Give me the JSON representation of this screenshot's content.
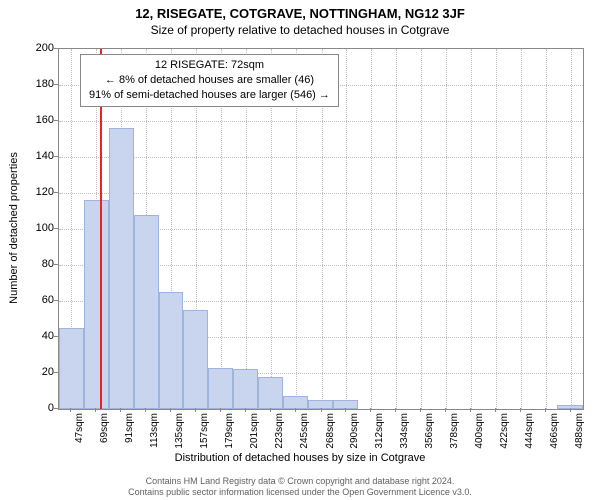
{
  "title_main": "12, RISEGATE, COTGRAVE, NOTTINGHAM, NG12 3JF",
  "title_sub": "Size of property relative to detached houses in Cotgrave",
  "y_axis_title": "Number of detached properties",
  "x_axis_title": "Distribution of detached houses by size in Cotgrave",
  "info_box": {
    "line1": "12 RISEGATE: 72sqm",
    "line2": "← 8% of detached houses are smaller (46)",
    "line3": "91% of semi-detached houses are larger (546) →"
  },
  "footer": {
    "line1": "Contains HM Land Registry data © Crown copyright and database right 2024.",
    "line2": "Contains public sector information licensed under the Open Government Licence v3.0."
  },
  "chart": {
    "type": "histogram",
    "background_color": "#ffffff",
    "border_color": "#888888",
    "grid_color": "#bfbfbf",
    "bar_fill": "#c9d5ef",
    "bar_border": "#9fb3dd",
    "marker_color": "#ee2020",
    "marker_x": 72,
    "x_min": 36,
    "x_max": 499,
    "ylim": [
      0,
      200
    ],
    "ytick_step": 20,
    "x_tick_labels": [
      "47sqm",
      "69sqm",
      "91sqm",
      "113sqm",
      "135sqm",
      "157sqm",
      "179sqm",
      "201sqm",
      "223sqm",
      "245sqm",
      "268sqm",
      "290sqm",
      "312sqm",
      "334sqm",
      "356sqm",
      "378sqm",
      "400sqm",
      "422sqm",
      "444sqm",
      "466sqm",
      "488sqm"
    ],
    "x_tick_positions": [
      47,
      69,
      91,
      113,
      135,
      157,
      179,
      201,
      223,
      245,
      268,
      290,
      312,
      334,
      356,
      378,
      400,
      422,
      444,
      466,
      488
    ],
    "bars": [
      {
        "x0": 36,
        "x1": 58,
        "y": 45
      },
      {
        "x0": 58,
        "x1": 80,
        "y": 116
      },
      {
        "x0": 80,
        "x1": 102,
        "y": 156
      },
      {
        "x0": 102,
        "x1": 124,
        "y": 108
      },
      {
        "x0": 124,
        "x1": 146,
        "y": 65
      },
      {
        "x0": 146,
        "x1": 168,
        "y": 55
      },
      {
        "x0": 168,
        "x1": 190,
        "y": 23
      },
      {
        "x0": 190,
        "x1": 212,
        "y": 22
      },
      {
        "x0": 212,
        "x1": 234,
        "y": 18
      },
      {
        "x0": 234,
        "x1": 256,
        "y": 7
      },
      {
        "x0": 256,
        "x1": 278,
        "y": 5
      },
      {
        "x0": 278,
        "x1": 300,
        "y": 5
      },
      {
        "x0": 300,
        "x1": 322,
        "y": 0
      },
      {
        "x0": 322,
        "x1": 344,
        "y": 0
      },
      {
        "x0": 344,
        "x1": 366,
        "y": 0
      },
      {
        "x0": 366,
        "x1": 388,
        "y": 0
      },
      {
        "x0": 388,
        "x1": 410,
        "y": 0
      },
      {
        "x0": 410,
        "x1": 432,
        "y": 0
      },
      {
        "x0": 432,
        "x1": 454,
        "y": 0
      },
      {
        "x0": 454,
        "x1": 476,
        "y": 0
      },
      {
        "x0": 476,
        "x1": 499,
        "y": 2
      }
    ],
    "title_fontsize": 13,
    "subtitle_fontsize": 12,
    "axis_label_fontsize": 11,
    "tick_fontsize": 11,
    "xtick_fontsize": 10
  }
}
